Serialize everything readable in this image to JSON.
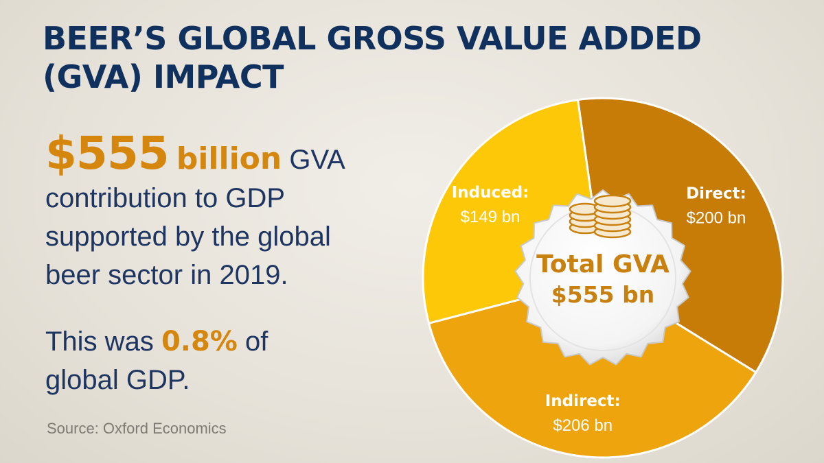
{
  "title": {
    "line1": "BEER’S GLOBAL GROSS VALUE ADDED",
    "line2": "(GVA) IMPACT"
  },
  "headline": {
    "amount": "$555",
    "unit": "billion",
    "rest_line1": " GVA",
    "rest_line2": "contribution to GDP",
    "rest_line3": "supported by the global",
    "rest_line4": "beer sector in 2019."
  },
  "share": {
    "prefix": "This was ",
    "percent": "0.8%",
    "suffix_line1": " of",
    "line2": "global GDP."
  },
  "source": "Source: Oxford Economics",
  "colors": {
    "title": "#10305e",
    "accent": "#d4860d",
    "direct": "#c67c06",
    "indirect": "#eea40c",
    "induced": "#fcc807"
  },
  "chart_data": {
    "type": "pie",
    "center_label": "Total GVA",
    "center_value": "$555 bn",
    "total": 555,
    "slices": [
      {
        "name": "Direct:",
        "value": 200,
        "label": "$200 bn",
        "color": "#c67c06"
      },
      {
        "name": "Indirect:",
        "value": 206,
        "label": "$206 bn",
        "color": "#eea40c"
      },
      {
        "name": "Induced:",
        "value": 149,
        "label": "$149 bn",
        "color": "#fcc807"
      }
    ]
  }
}
